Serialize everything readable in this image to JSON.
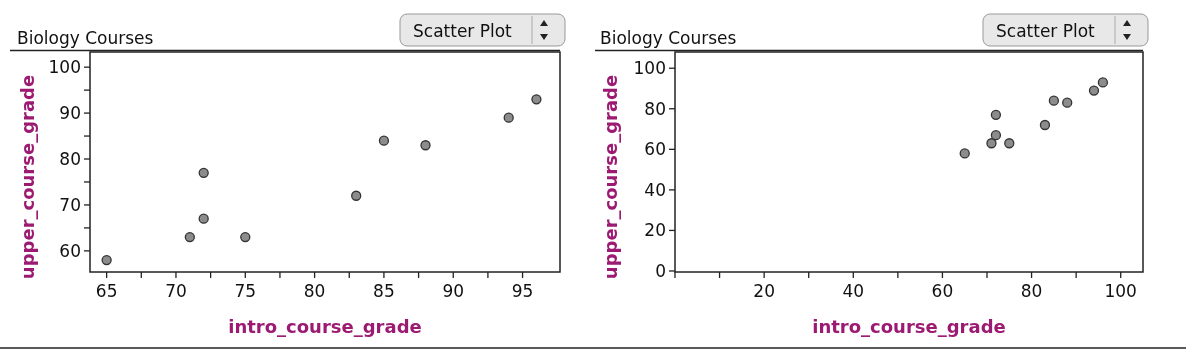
{
  "chart_data": [
    {
      "type": "scatter",
      "title": "Biology Courses",
      "xlabel": "intro_course_grade",
      "ylabel": "upper_course_grade",
      "annotations": [
        "Scatter Plot"
      ],
      "marker": "circle",
      "series": [
        {
          "color": "#8c8c8c",
          "x": [
            65,
            71,
            72,
            72,
            75,
            83,
            85,
            88,
            94,
            96
          ],
          "values": [
            58,
            63,
            67,
            77,
            63,
            72,
            84,
            83,
            89,
            93
          ]
        }
      ],
      "xlim": [
        63.8,
        97.7
      ],
      "xticks": [
        65,
        {
          "value": 67.5,
          "label": null
        },
        70,
        {
          "value": 72.5,
          "label": null
        },
        75,
        {
          "value": 77.5,
          "label": null
        },
        80,
        {
          "value": 82.5,
          "label": null
        },
        85,
        {
          "value": 87.5,
          "label": null
        },
        90,
        {
          "value": 92.5,
          "label": null
        },
        95
      ],
      "ylim": [
        55.4,
        103.3
      ],
      "yticks": [
        60,
        {
          "value": 65,
          "label": null
        },
        70,
        {
          "value": 75,
          "label": null
        },
        80,
        {
          "value": 85,
          "label": null
        },
        90,
        {
          "value": 95,
          "label": null
        },
        100
      ]
    },
    {
      "type": "scatter",
      "title": "Biology Courses",
      "xlabel": "intro_course_grade",
      "ylabel": "upper_course_grade",
      "annotations": [
        "Scatter Plot"
      ],
      "marker": "circle",
      "series": [
        {
          "color": "#8c8c8c",
          "x": [
            65,
            71,
            72,
            72,
            75,
            83,
            85,
            88,
            94,
            96
          ],
          "values": [
            58,
            63,
            67,
            77,
            63,
            72,
            84,
            83,
            89,
            93
          ]
        }
      ],
      "xlim": [
        0,
        105
      ],
      "xticks": [
        {
          "value": 0,
          "label": null
        },
        {
          "value": 10,
          "label": null
        },
        20,
        {
          "value": 30,
          "label": null
        },
        40,
        {
          "value": 50,
          "label": null
        },
        60,
        {
          "value": 70,
          "label": null
        },
        80,
        {
          "value": 90,
          "label": null
        },
        100
      ],
      "ylim": [
        -0.5,
        108
      ],
      "yticks": [
        0,
        20,
        40,
        60,
        80,
        100
      ]
    }
  ]
}
